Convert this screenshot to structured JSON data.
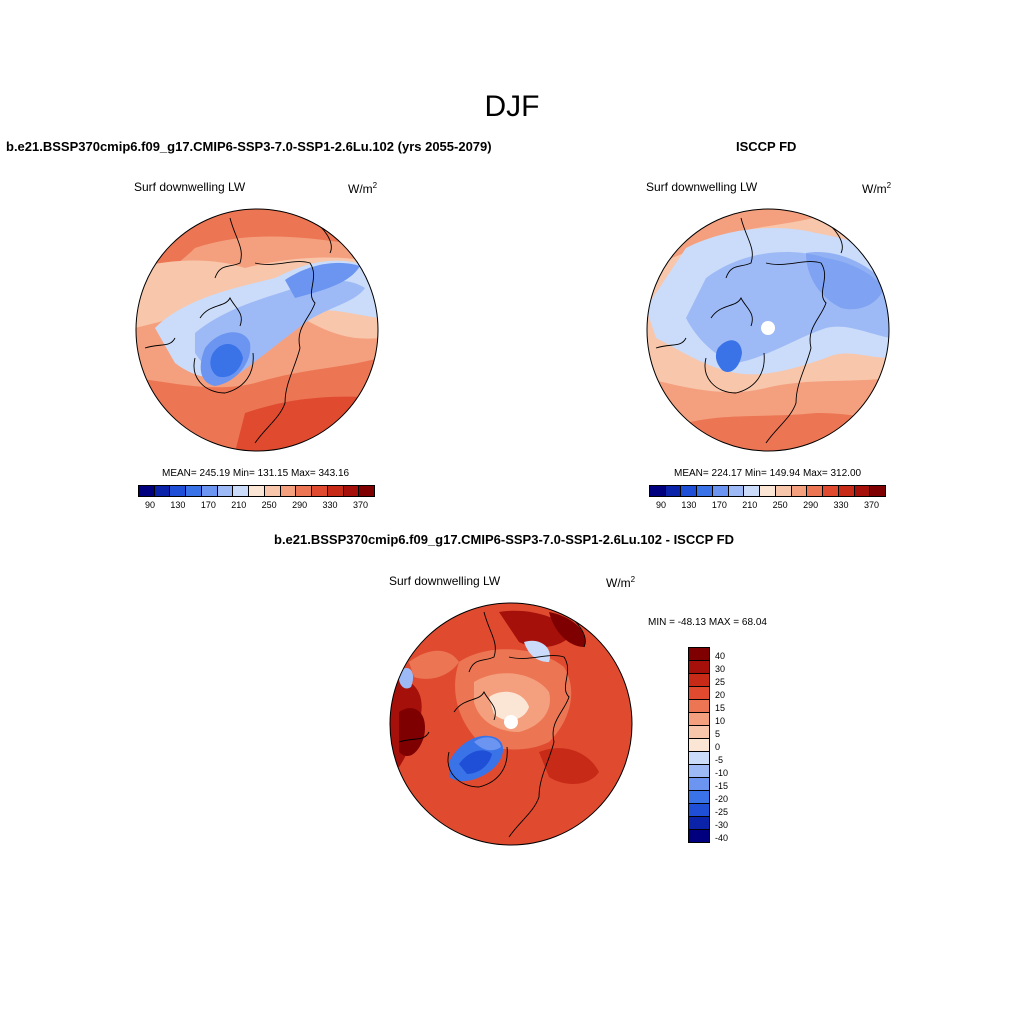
{
  "figure": {
    "title": "DJF"
  },
  "model_panel": {
    "title": "b.e21.BSSP370cmip6.f09_g17.CMIP6-SSP3-7.0-SSP1-2.6Lu.102 (yrs 2055-2079)",
    "variable": "Surf downwelling LW",
    "units_base": "W/m",
    "units_exp": "2",
    "stats": "MEAN= 245.19  Min= 131.15  Max= 343.16"
  },
  "obs_panel": {
    "title": "ISCCP FD",
    "variable": "Surf downwelling LW",
    "units_base": "W/m",
    "units_exp": "2",
    "stats": "MEAN= 224.17  Min= 149.94  Max= 312.00"
  },
  "diff_panel": {
    "title": "b.e21.BSSP370cmip6.f09_g17.CMIP6-SSP3-7.0-SSP1-2.6Lu.102 - ISCCP FD",
    "variable": "Surf downwelling LW",
    "units_base": "W/m",
    "units_exp": "2",
    "stats": "MIN = -48.13 MAX =  68.04"
  },
  "abs_colorbar": {
    "colors": [
      "#00007f",
      "#0a23a8",
      "#1f4fd6",
      "#3a72e8",
      "#6b95f0",
      "#9ebaf6",
      "#cadcf9",
      "#fbe6d6",
      "#f8c6ab",
      "#f4a07f",
      "#ec7654",
      "#e04b30",
      "#c72a17",
      "#a5100a",
      "#7f0000"
    ],
    "tick_labels": [
      "90",
      "130",
      "170",
      "210",
      "250",
      "290",
      "330",
      "370"
    ]
  },
  "diff_colorbar": {
    "colors_top_to_bottom": [
      "#7f0000",
      "#a5100a",
      "#c72a17",
      "#e04b30",
      "#ec7654",
      "#f4a07f",
      "#f8c6ab",
      "#fbe6d6",
      "#cadcf9",
      "#9ebaf6",
      "#6b95f0",
      "#3a72e8",
      "#1f4fd6",
      "#0a23a8",
      "#00007f"
    ],
    "tick_labels_top_to_bottom": [
      "40",
      "30",
      "25",
      "20",
      "15",
      "10",
      "5",
      "0",
      "-5",
      "-10",
      "-15",
      "-20",
      "-25",
      "-30",
      "-40"
    ]
  }
}
